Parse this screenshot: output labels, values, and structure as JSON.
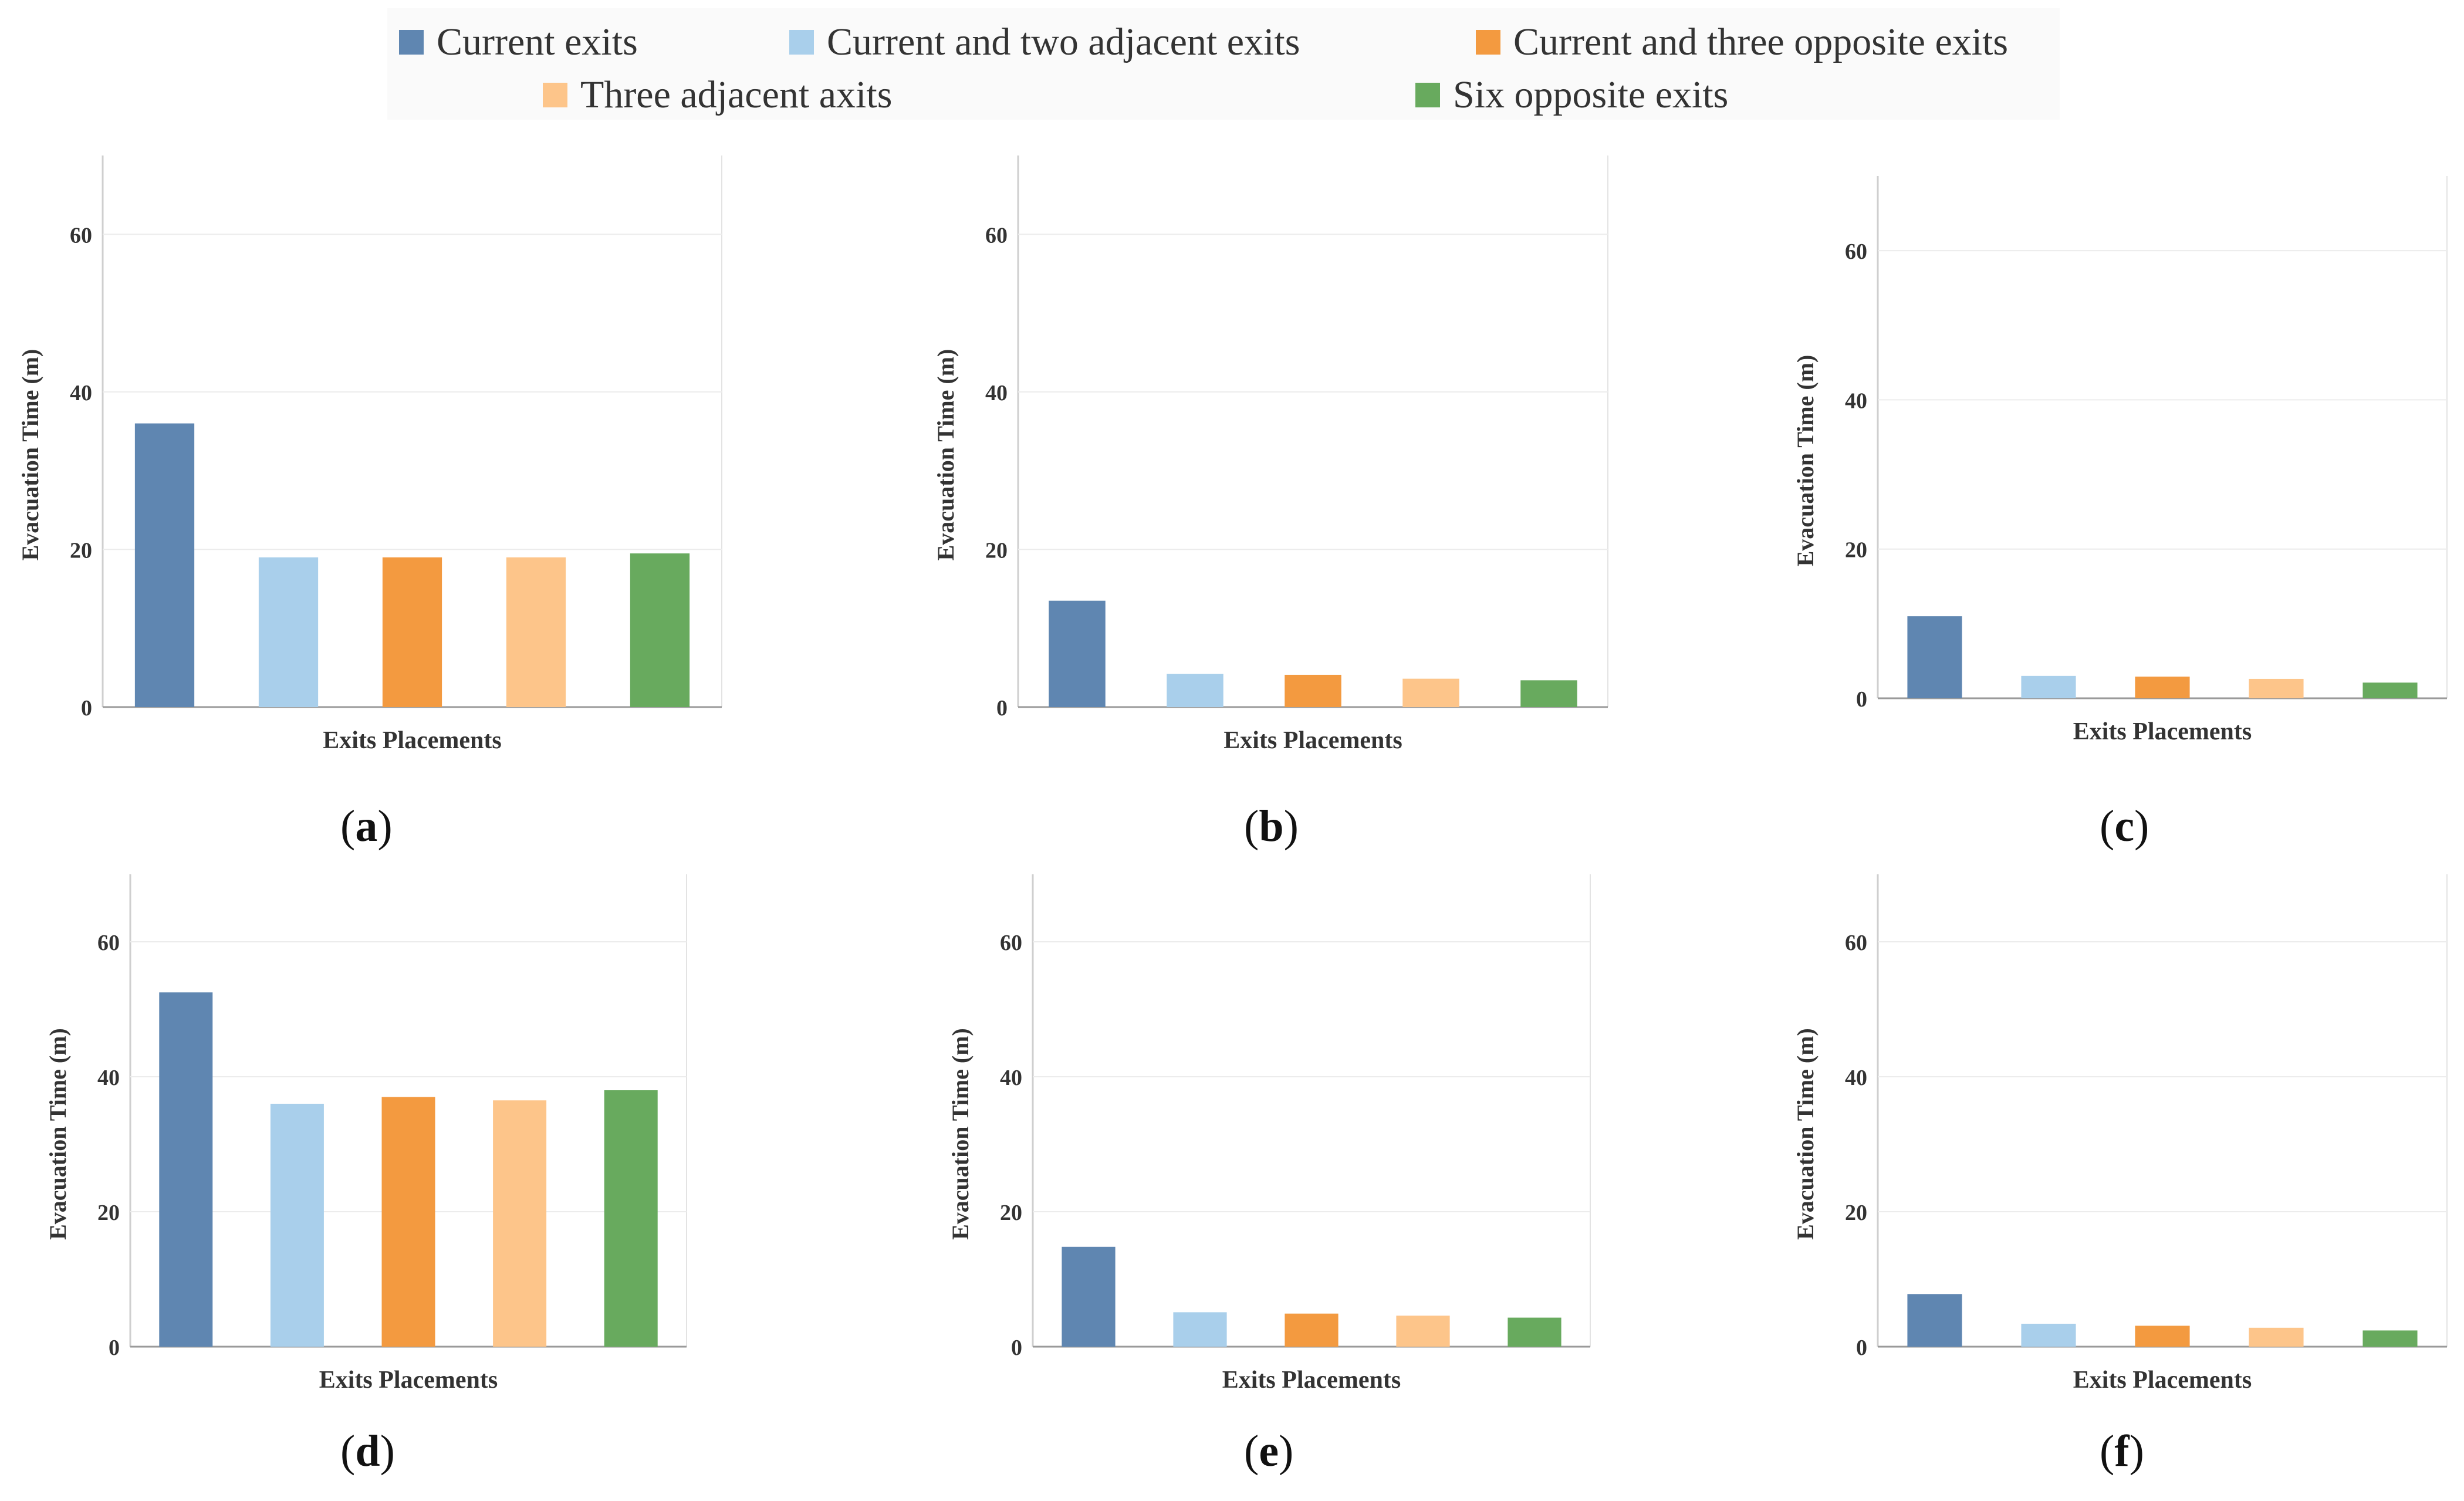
{
  "legend": {
    "items": [
      {
        "label": "Current exits",
        "color": "#5f86b1"
      },
      {
        "label": "Current and two adjacent exits",
        "color": "#a9cfeb"
      },
      {
        "label": "Current and three opposite exits",
        "color": "#f39a40"
      },
      {
        "label": "Three adjacent axits",
        "color": "#fdc58a"
      },
      {
        "label": "Six opposite exits",
        "color": "#68aa5e"
      }
    ]
  },
  "chart_data": [
    {
      "id": "a",
      "caption": "a",
      "type": "bar",
      "xlabel": "Exits Placements",
      "ylabel": "Evacuation Time (m)",
      "ylim": [
        0,
        70
      ],
      "yticks": [
        0,
        20,
        40,
        60
      ],
      "categories": [
        "Current exits",
        "Current and two adjacent exits",
        "Current and three opposite exits",
        "Three adjacent axits",
        "Six opposite exits"
      ],
      "values": [
        36,
        19,
        19,
        19,
        19.5
      ]
    },
    {
      "id": "b",
      "caption": "b",
      "type": "bar",
      "xlabel": "Exits Placements",
      "ylabel": "Evacuation Time (m)",
      "ylim": [
        0,
        70
      ],
      "yticks": [
        0,
        20,
        40,
        60
      ],
      "categories": [
        "Current exits",
        "Current and two adjacent exits",
        "Current and three opposite exits",
        "Three adjacent axits",
        "Six opposite exits"
      ],
      "values": [
        13.5,
        4.2,
        4.1,
        3.6,
        3.4
      ]
    },
    {
      "id": "c",
      "caption": "c",
      "type": "bar",
      "xlabel": "Exits Placements",
      "ylabel": "Evacuation Time (m)",
      "ylim": [
        0,
        70
      ],
      "yticks": [
        0,
        20,
        40,
        60
      ],
      "categories": [
        "Current exits",
        "Current and two adjacent exits",
        "Current and three opposite exits",
        "Three adjacent axits",
        "Six opposite exits"
      ],
      "values": [
        11,
        3,
        2.9,
        2.6,
        2.1
      ]
    },
    {
      "id": "d",
      "caption": "d",
      "type": "bar",
      "xlabel": "Exits Placements",
      "ylabel": "Evacuation Time (m)",
      "ylim": [
        0,
        70
      ],
      "yticks": [
        0,
        20,
        40,
        60
      ],
      "categories": [
        "Current exits",
        "Current and two adjacent exits",
        "Current and three opposite exits",
        "Three adjacent axits",
        "Six opposite exits"
      ],
      "values": [
        52.5,
        36,
        37,
        36.5,
        38
      ]
    },
    {
      "id": "e",
      "caption": "e",
      "type": "bar",
      "xlabel": "Exits Placements",
      "ylabel": "Evacuation Time (m)",
      "ylim": [
        0,
        70
      ],
      "yticks": [
        0,
        20,
        40,
        60
      ],
      "categories": [
        "Current exits",
        "Current and two adjacent exits",
        "Current and three opposite exits",
        "Three adjacent axits",
        "Six opposite exits"
      ],
      "values": [
        14.8,
        5.1,
        4.9,
        4.6,
        4.3
      ]
    },
    {
      "id": "f",
      "caption": "f",
      "type": "bar",
      "xlabel": "Exits Placements",
      "ylabel": "Evacuation Time (m)",
      "ylim": [
        0,
        70
      ],
      "yticks": [
        0,
        20,
        40,
        60
      ],
      "categories": [
        "Current exits",
        "Current and two adjacent exits",
        "Current and three opposite exits",
        "Three adjacent axits",
        "Six opposite exits"
      ],
      "values": [
        7.8,
        3.4,
        3.1,
        2.8,
        2.4
      ]
    }
  ]
}
